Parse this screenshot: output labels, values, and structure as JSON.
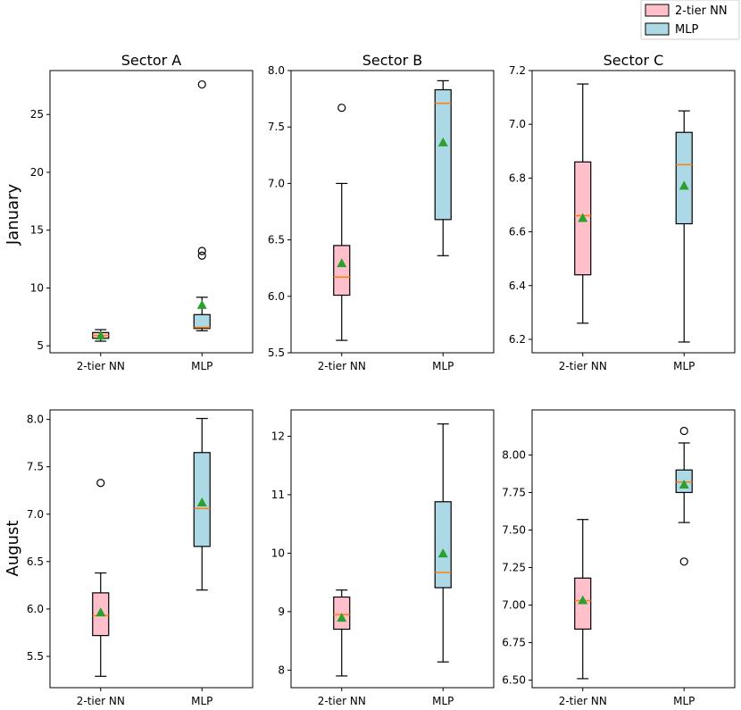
{
  "legend": {
    "items": [
      {
        "label": "2-tier NN",
        "color": "#ffc0cb"
      },
      {
        "label": "MLP",
        "color": "#add8e6"
      }
    ]
  },
  "colors": {
    "two_tier": "#ffc0cb",
    "mlp": "#add8e6",
    "median": "#ff7f0e",
    "mean": "#2ca02c"
  },
  "chart_data": [
    {
      "type": "box",
      "id": "jan-a",
      "row": "January",
      "title": "Sector A",
      "categories": [
        "2-tier NN",
        "MLP"
      ],
      "ylim": [
        4.4,
        28.8
      ],
      "yticks": [
        5,
        10,
        15,
        20,
        25
      ],
      "tick_labels": [
        "5",
        "10",
        "15",
        "20",
        "25"
      ],
      "boxes": [
        {
          "whisker_low": 5.4,
          "q1": 5.65,
          "median": 5.9,
          "q3": 6.15,
          "whisker_high": 6.4,
          "mean": 5.85,
          "outliers": []
        },
        {
          "whisker_low": 6.3,
          "q1": 6.5,
          "median": 6.6,
          "q3": 7.7,
          "whisker_high": 9.2,
          "mean": 8.5,
          "outliers": [
            12.8,
            13.2,
            27.6
          ]
        }
      ]
    },
    {
      "type": "box",
      "id": "jan-b",
      "row": "January",
      "title": "Sector B",
      "categories": [
        "2-tier NN",
        "MLP"
      ],
      "ylim": [
        5.5,
        8.0
      ],
      "yticks": [
        5.5,
        6.0,
        6.5,
        7.0,
        7.5,
        8.0
      ],
      "tick_labels": [
        "5.5",
        "6.0",
        "6.5",
        "7.0",
        "7.5",
        "8.0"
      ],
      "boxes": [
        {
          "whisker_low": 5.61,
          "q1": 6.01,
          "median": 6.17,
          "q3": 6.45,
          "whisker_high": 7.0,
          "mean": 6.29,
          "outliers": [
            7.67
          ]
        },
        {
          "whisker_low": 6.36,
          "q1": 6.68,
          "median": 7.71,
          "q3": 7.83,
          "whisker_high": 7.91,
          "mean": 7.36,
          "outliers": []
        }
      ]
    },
    {
      "type": "box",
      "id": "jan-c",
      "row": "January",
      "title": "Sector C",
      "categories": [
        "2-tier NN",
        "MLP"
      ],
      "ylim": [
        6.15,
        7.2
      ],
      "yticks": [
        6.2,
        6.4,
        6.6,
        6.8,
        7.0,
        7.2
      ],
      "tick_labels": [
        "6.2",
        "6.4",
        "6.6",
        "6.8",
        "7.0",
        "7.2"
      ],
      "boxes": [
        {
          "whisker_low": 6.26,
          "q1": 6.44,
          "median": 6.66,
          "q3": 6.86,
          "whisker_high": 7.15,
          "mean": 6.65,
          "outliers": []
        },
        {
          "whisker_low": 6.19,
          "q1": 6.63,
          "median": 6.85,
          "q3": 6.97,
          "whisker_high": 7.05,
          "mean": 6.77,
          "outliers": []
        }
      ]
    },
    {
      "type": "box",
      "id": "aug-a",
      "row": "August",
      "title": "",
      "categories": [
        "2-tier NN",
        "MLP"
      ],
      "ylim": [
        5.17,
        8.1
      ],
      "yticks": [
        5.5,
        6.0,
        6.5,
        7.0,
        7.5,
        8.0
      ],
      "tick_labels": [
        "5.5",
        "6.0",
        "6.5",
        "7.0",
        "7.5",
        "8.0"
      ],
      "boxes": [
        {
          "whisker_low": 5.29,
          "q1": 5.72,
          "median": 5.93,
          "q3": 6.17,
          "whisker_high": 6.38,
          "mean": 5.96,
          "outliers": [
            7.33
          ]
        },
        {
          "whisker_low": 6.2,
          "q1": 6.66,
          "median": 7.06,
          "q3": 7.65,
          "whisker_high": 8.01,
          "mean": 7.12,
          "outliers": []
        }
      ]
    },
    {
      "type": "box",
      "id": "aug-b",
      "row": "August",
      "title": "",
      "categories": [
        "2-tier NN",
        "MLP"
      ],
      "ylim": [
        7.7,
        12.45
      ],
      "yticks": [
        8,
        9,
        10,
        11,
        12
      ],
      "tick_labels": [
        "8",
        "9",
        "10",
        "11",
        "12"
      ],
      "boxes": [
        {
          "whisker_low": 7.9,
          "q1": 8.7,
          "median": 8.95,
          "q3": 9.25,
          "whisker_high": 9.37,
          "mean": 8.89,
          "outliers": []
        },
        {
          "whisker_low": 8.14,
          "q1": 9.41,
          "median": 9.67,
          "q3": 10.88,
          "whisker_high": 12.21,
          "mean": 9.99,
          "outliers": []
        }
      ]
    },
    {
      "type": "box",
      "id": "aug-c",
      "row": "August",
      "title": "",
      "categories": [
        "2-tier NN",
        "MLP"
      ],
      "ylim": [
        6.45,
        8.3
      ],
      "yticks": [
        6.5,
        6.75,
        7.0,
        7.25,
        7.5,
        7.75,
        8.0
      ],
      "tick_labels": [
        "6.50",
        "6.75",
        "7.00",
        "7.25",
        "7.50",
        "7.75",
        "8.00"
      ],
      "boxes": [
        {
          "whisker_low": 6.51,
          "q1": 6.84,
          "median": 7.03,
          "q3": 7.18,
          "whisker_high": 7.57,
          "mean": 7.03,
          "outliers": []
        },
        {
          "whisker_low": 7.55,
          "q1": 7.75,
          "median": 7.82,
          "q3": 7.9,
          "whisker_high": 8.08,
          "mean": 7.8,
          "outliers": [
            7.29,
            8.16
          ]
        }
      ]
    }
  ],
  "row_labels": [
    "January",
    "August"
  ]
}
